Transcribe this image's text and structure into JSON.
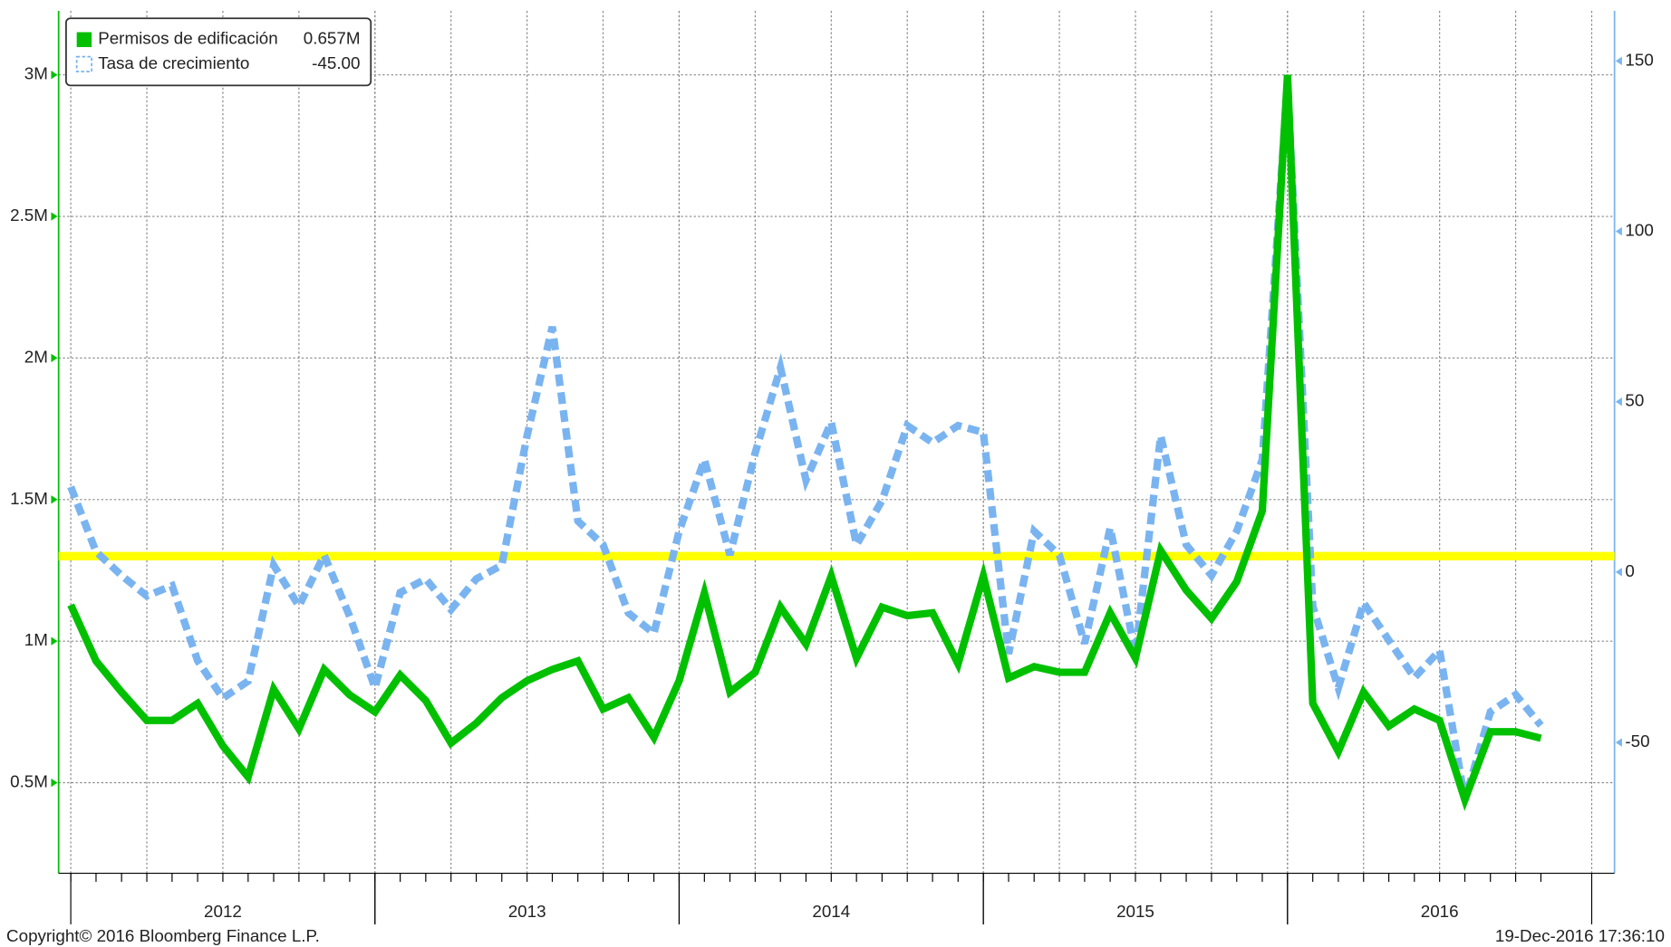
{
  "chart_data": {
    "type": "line",
    "x": [
      2012.0,
      2012.083,
      2012.167,
      2012.25,
      2012.333,
      2012.417,
      2012.5,
      2012.583,
      2012.667,
      2012.75,
      2012.833,
      2012.917,
      2013.0,
      2013.083,
      2013.167,
      2013.25,
      2013.333,
      2013.417,
      2013.5,
      2013.583,
      2013.667,
      2013.75,
      2013.833,
      2013.917,
      2014.0,
      2014.083,
      2014.167,
      2014.25,
      2014.333,
      2014.417,
      2014.5,
      2014.583,
      2014.667,
      2014.75,
      2014.833,
      2014.917,
      2015.0,
      2015.083,
      2015.167,
      2015.25,
      2015.333,
      2015.417,
      2015.5,
      2015.583,
      2015.667,
      2015.75,
      2015.833,
      2015.917,
      2016.0,
      2016.083,
      2016.167,
      2016.25,
      2016.333,
      2016.417,
      2016.5,
      2016.583,
      2016.667,
      2016.75,
      2016.833
    ],
    "xlim": [
      2011.96,
      2017.075
    ],
    "xticks": [
      {
        "value": 2012.5,
        "label": "2012"
      },
      {
        "value": 2013.5,
        "label": "2013"
      },
      {
        "value": 2014.5,
        "label": "2014"
      },
      {
        "value": 2015.5,
        "label": "2015"
      },
      {
        "value": 2016.5,
        "label": "2016"
      }
    ],
    "ylim": [
      180000,
      3226000
    ],
    "yticks": [
      {
        "value": 500000,
        "label": "0.5M"
      },
      {
        "value": 1000000,
        "label": "1M"
      },
      {
        "value": 1500000,
        "label": "1.5M"
      },
      {
        "value": 2000000,
        "label": "2M"
      },
      {
        "value": 2500000,
        "label": "2.5M"
      },
      {
        "value": 3000000,
        "label": "3M"
      }
    ],
    "y2lim": [
      -88.4,
      164.7
    ],
    "y2ticks": [
      -50,
      0,
      50,
      100,
      150
    ],
    "grid": true,
    "legend": "top-left",
    "series": [
      {
        "name": "Permisos de edificación",
        "last_label": "0.657M",
        "color": "#00c000",
        "axis": "y",
        "values": [
          1128000,
          930000,
          820000,
          720000,
          720000,
          780000,
          630000,
          520000,
          830000,
          690000,
          900000,
          810000,
          750000,
          880000,
          790000,
          640000,
          710000,
          800000,
          860000,
          900000,
          930000,
          760000,
          800000,
          660000,
          860000,
          1170000,
          820000,
          890000,
          1120000,
          990000,
          1230000,
          940000,
          1120000,
          1090000,
          1100000,
          920000,
          1230000,
          870000,
          910000,
          890000,
          890000,
          1100000,
          940000,
          1320000,
          1180000,
          1080000,
          1210000,
          1460000,
          3000000,
          780000,
          610000,
          820000,
          700000,
          760000,
          720000,
          440000,
          680000,
          680000,
          657000
        ]
      },
      {
        "name": "Tasa de crecimiento",
        "last_label": "-45.00",
        "color": "#7ab4f0",
        "axis": "y2",
        "dashed": true,
        "values": [
          25,
          6,
          -1,
          -7,
          -4,
          -26,
          -37,
          -32,
          2,
          -10,
          5,
          -13,
          -34,
          -6,
          -2,
          -11,
          -2,
          2,
          40,
          72,
          15,
          8,
          -12,
          -18,
          12,
          33,
          5,
          35,
          60,
          27,
          44,
          8,
          21,
          43,
          38,
          43,
          41,
          -24,
          12,
          5,
          -21,
          13,
          -24,
          40,
          8,
          -1,
          12,
          33,
          144,
          -10,
          -34,
          -9,
          -20,
          -31,
          -23,
          -67,
          -41,
          -36,
          -45
        ]
      }
    ],
    "hline": {
      "value": 1300000,
      "color": "#ffff00"
    },
    "footer_left": "Copyright© 2016 Bloomberg Finance L.P.",
    "footer_right": "19-Dec-2016 17:36:10"
  }
}
